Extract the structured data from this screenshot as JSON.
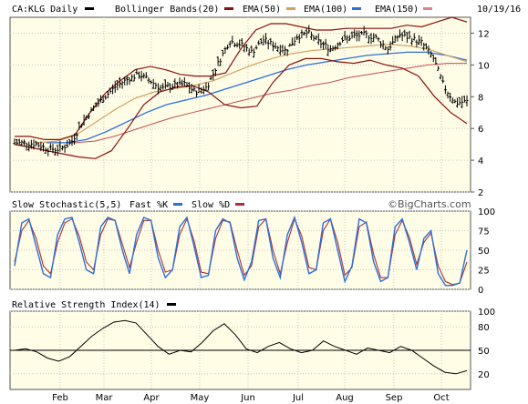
{
  "header": {
    "symbol": "CA:KLG Daily",
    "date": "10/19/16",
    "legend": [
      {
        "label": "Bollinger Bands(20)",
        "color": "#8b1010"
      },
      {
        "label": "EMA(50)",
        "color": "#8b1010"
      },
      {
        "label": "EMA(100)",
        "color": "#d4a060"
      },
      {
        "label": "EMA(150)",
        "color": "#2a6fdb"
      }
    ],
    "symbol_swatch_color": "#000000",
    "ema150_swatch_color": "#e08080"
  },
  "stochastic": {
    "title": "Slow Stochastic(5,5)",
    "fast_label": "Fast %K",
    "slow_label": "Slow %D",
    "fast_color": "#2a6fdb",
    "slow_color": "#b03030"
  },
  "rsi": {
    "title": "Relative Strength Index(14)"
  },
  "watermark": "©BigCharts.com",
  "chart_data": [
    {
      "type": "ohlc",
      "panel": "price",
      "title": "CA:KLG Daily",
      "ylim": [
        2,
        13
      ],
      "yticks": [
        2,
        4,
        6,
        8,
        10,
        12
      ],
      "x_months": [
        "Feb",
        "Mar",
        "Apr",
        "May",
        "Jun",
        "Jul",
        "Aug",
        "Sep",
        "Oct"
      ],
      "close_profile_weekly": [
        5.1,
        5.1,
        5.0,
        4.7,
        4.7,
        5.1,
        6.4,
        7.3,
        8.0,
        8.7,
        9.1,
        9.4,
        9.0,
        8.5,
        8.7,
        8.8,
        8.3,
        8.6,
        10.1,
        11.5,
        11.3,
        10.8,
        11.6,
        11.2,
        10.9,
        11.8,
        12.0,
        11.4,
        11.0,
        11.6,
        11.8,
        11.9,
        11.7,
        11.0,
        11.9,
        11.7,
        11.4,
        10.5,
        8.6,
        7.6,
        7.7
      ],
      "bollinger_upper": [
        5.5,
        5.5,
        5.3,
        5.3,
        5.6,
        7.0,
        8.2,
        9.0,
        9.7,
        9.9,
        9.7,
        9.4,
        9.3,
        9.3,
        9.5,
        11.0,
        12.2,
        12.6,
        12.6,
        12.4,
        12.2,
        12.2,
        12.3,
        12.3,
        12.3,
        12.3,
        12.5,
        12.4,
        12.7,
        13.0,
        12.7
      ],
      "bollinger_lower": [
        5.0,
        4.8,
        4.6,
        4.4,
        4.2,
        4.1,
        4.6,
        6.0,
        7.5,
        8.3,
        8.6,
        8.7,
        8.3,
        7.5,
        7.3,
        7.4,
        8.9,
        10.0,
        10.4,
        10.4,
        10.2,
        10.1,
        10.3,
        10.0,
        9.8,
        9.3,
        8.0,
        7.0,
        6.3
      ],
      "ema50": [
        5.1,
        5.2,
        5.6,
        6.4,
        7.2,
        7.9,
        8.3,
        8.5,
        8.7,
        9.0,
        9.5,
        10.0,
        10.4,
        10.7,
        10.9,
        11.0,
        11.1,
        11.2,
        11.3,
        11.2,
        11.0,
        10.6,
        10.2
      ],
      "ema100": [
        5.1,
        5.1,
        5.3,
        5.8,
        6.4,
        7.0,
        7.5,
        7.8,
        8.1,
        8.5,
        8.9,
        9.3,
        9.7,
        10.0,
        10.2,
        10.4,
        10.6,
        10.7,
        10.8,
        10.8,
        10.6,
        10.3
      ],
      "ema150": [
        5.1,
        5.1,
        5.2,
        5.5,
        5.9,
        6.3,
        6.7,
        7.0,
        7.3,
        7.6,
        7.9,
        8.2,
        8.4,
        8.7,
        8.9,
        9.2,
        9.4,
        9.6,
        9.8,
        10.0,
        10.1,
        10.1
      ]
    },
    {
      "type": "line",
      "panel": "stochastic",
      "title": "Slow Stochastic(5,5)",
      "ylim": [
        0,
        100
      ],
      "yticks": [
        0,
        25,
        50,
        75,
        100
      ],
      "series": [
        {
          "name": "Fast %K",
          "values": [
            30,
            85,
            90,
            55,
            20,
            15,
            70,
            90,
            92,
            60,
            25,
            20,
            80,
            92,
            88,
            50,
            20,
            70,
            92,
            88,
            40,
            15,
            25,
            80,
            92,
            55,
            15,
            18,
            75,
            90,
            85,
            40,
            12,
            35,
            88,
            90,
            40,
            15,
            70,
            92,
            60,
            20,
            25,
            85,
            90,
            50,
            10,
            30,
            90,
            85,
            35,
            10,
            15,
            80,
            90,
            60,
            25,
            65,
            75,
            20,
            5,
            5,
            8,
            50
          ]
        },
        {
          "name": "Slow %D",
          "values": [
            35,
            75,
            88,
            65,
            30,
            20,
            60,
            85,
            90,
            68,
            35,
            25,
            70,
            90,
            88,
            58,
            28,
            60,
            88,
            88,
            50,
            22,
            25,
            70,
            90,
            62,
            22,
            20,
            65,
            88,
            86,
            50,
            18,
            30,
            80,
            90,
            50,
            20,
            60,
            90,
            68,
            28,
            25,
            75,
            90,
            60,
            18,
            28,
            80,
            86,
            45,
            15,
            15,
            70,
            88,
            66,
            32,
            60,
            72,
            30,
            10,
            6,
            8,
            35
          ]
        }
      ]
    },
    {
      "type": "line",
      "panel": "rsi",
      "title": "Relative Strength Index(14)",
      "ylim": [
        0,
        100
      ],
      "yticks": [
        20,
        50,
        80,
        100
      ],
      "reference_line": 50,
      "series": [
        {
          "name": "Relative Strength Index(14)",
          "values": [
            50,
            52,
            48,
            40,
            36,
            42,
            55,
            68,
            78,
            86,
            88,
            85,
            70,
            55,
            45,
            50,
            48,
            60,
            75,
            84,
            70,
            52,
            47,
            55,
            60,
            52,
            47,
            50,
            62,
            55,
            50,
            45,
            53,
            50,
            47,
            55,
            50,
            40,
            30,
            22,
            20,
            24
          ]
        }
      ]
    }
  ]
}
